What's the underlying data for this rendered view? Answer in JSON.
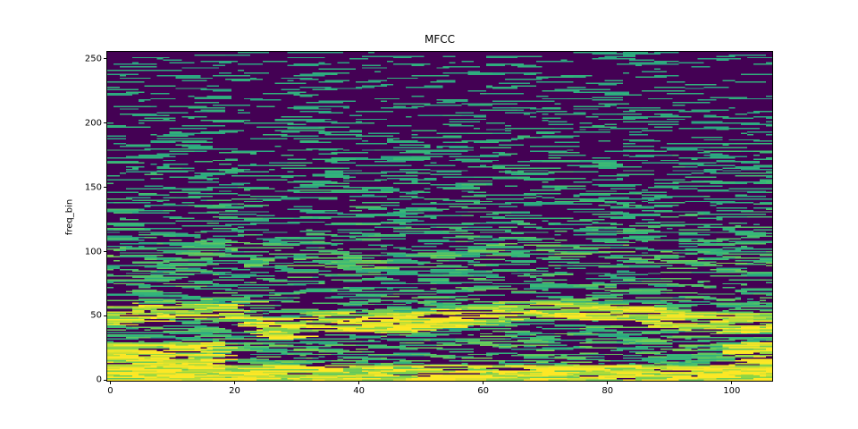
{
  "chart_data": {
    "type": "heatmap",
    "title": "MFCC",
    "xlabel": "",
    "ylabel": "freq_bin",
    "xlim": [
      -0.5,
      106.5
    ],
    "ylim": [
      -0.5,
      255.5
    ],
    "x_ticks": [
      "0",
      "20",
      "40",
      "60",
      "80",
      "100"
    ],
    "y_ticks": [
      "0",
      "50",
      "100",
      "150",
      "200",
      "250"
    ],
    "n_frames": 107,
    "n_bins": 256,
    "colormap": "viridis",
    "colors": [
      "#440154",
      "#21918c",
      "#35b779",
      "#90d743",
      "#fde725"
    ],
    "grid": false
  }
}
